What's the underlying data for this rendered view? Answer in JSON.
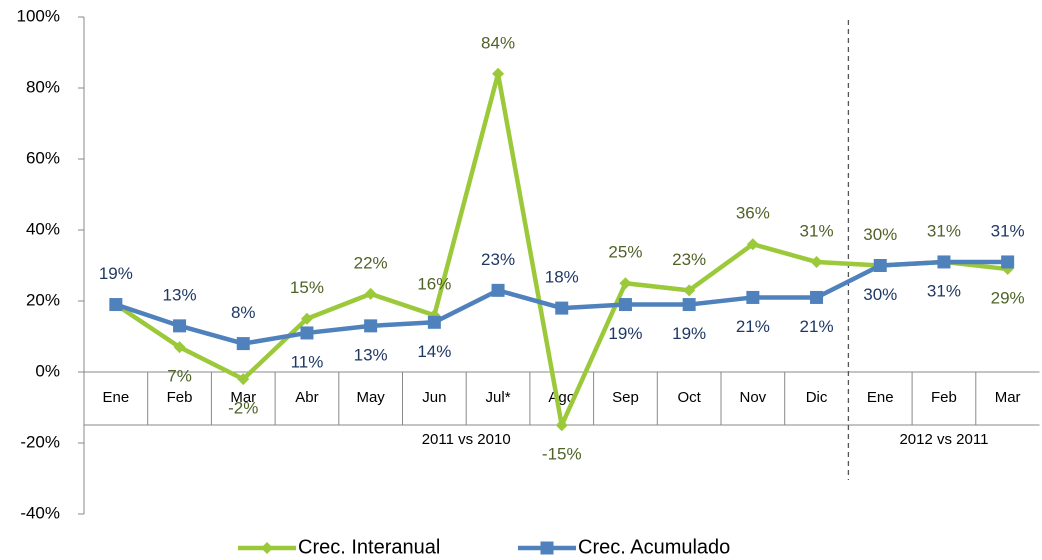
{
  "chart_data": {
    "type": "line",
    "categories": [
      "Ene",
      "Feb",
      "Mar",
      "Abr",
      "May",
      "Jun",
      "Jul*",
      "Ago",
      "Sep",
      "Oct",
      "Nov",
      "Dic",
      "Ene",
      "Feb",
      "Mar"
    ],
    "groups": [
      "2011 vs 2010",
      "2012 vs 2011"
    ],
    "series": [
      {
        "name": "Crec. Interanual",
        "color": "#9bc93a",
        "label_color": "#4f6228",
        "marker": "diamond",
        "values": [
          19,
          7,
          -2,
          15,
          22,
          16,
          84,
          -15,
          25,
          23,
          36,
          31,
          30,
          31,
          29
        ],
        "value_labels": [
          null,
          "7%",
          "-2%",
          "15%",
          "22%",
          "16%",
          "84%",
          "-15%",
          "25%",
          "23%",
          "36%",
          "31%",
          "30%",
          "31%",
          "29%"
        ]
      },
      {
        "name": "Crec. Acumulado",
        "color": "#4f81bd",
        "label_color": "#1f3864",
        "marker": "square",
        "values": [
          19,
          13,
          8,
          11,
          13,
          14,
          23,
          18,
          19,
          19,
          21,
          21,
          30,
          31,
          31
        ],
        "value_labels": [
          "19%",
          "13%",
          "8%",
          "11%",
          "13%",
          "14%",
          "23%",
          "18%",
          "19%",
          "19%",
          "21%",
          "21%",
          "30%",
          "31%",
          "31%"
        ]
      }
    ],
    "ylim": [
      -40,
      100
    ],
    "yticks": [
      {
        "value": -40,
        "label": "-40%"
      },
      {
        "value": -20,
        "label": "-20%"
      },
      {
        "value": 0,
        "label": "0%"
      },
      {
        "value": 20,
        "label": "20%"
      },
      {
        "value": 40,
        "label": "40%"
      },
      {
        "value": 60,
        "label": "60%"
      },
      {
        "value": 80,
        "label": "80%"
      },
      {
        "value": 100,
        "label": "100%"
      }
    ],
    "legend": "bottom"
  }
}
